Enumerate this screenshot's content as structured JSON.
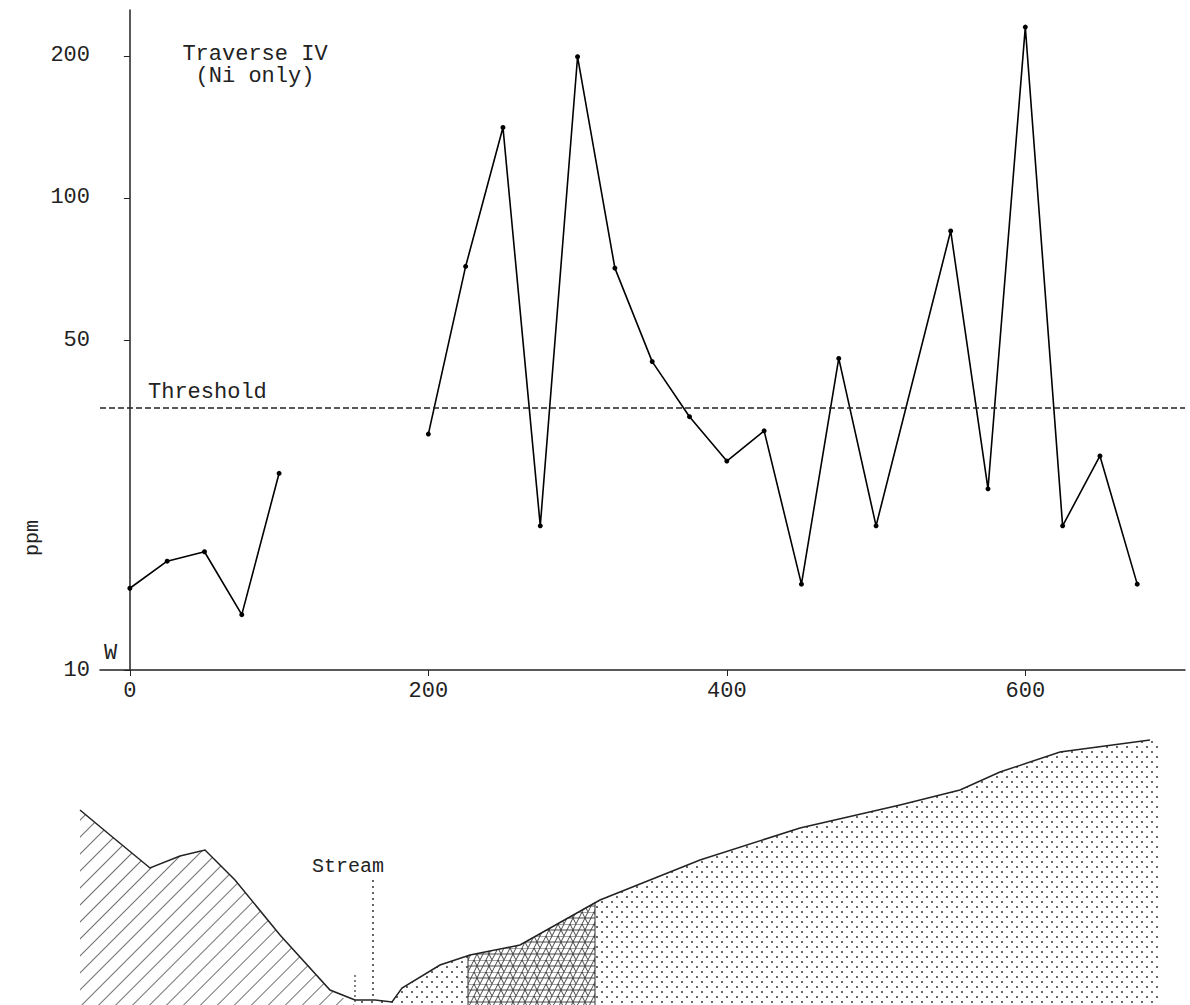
{
  "chart_data": {
    "type": "line",
    "title": "Traverse IV",
    "subtitle": "(Ni only)",
    "y_label": "ppm",
    "annotation": "W",
    "threshold": {
      "value": 36,
      "label": "Threshold",
      "line_style": "dashed"
    },
    "x": [
      0,
      25,
      50,
      75,
      100,
      150,
      200,
      225,
      250,
      275,
      300,
      325,
      350,
      375,
      400,
      425,
      450,
      475,
      500,
      550,
      575,
      600,
      625,
      650,
      675
    ],
    "series": [
      {
        "name": "Ni",
        "color": "#000000",
        "marker": "circle",
        "line_style": "solid",
        "values": [
          14.9,
          17.0,
          17.8,
          13.1,
          26.1,
          null,
          31.6,
          71.6,
          141,
          20.2,
          199,
          71,
          45,
          34.4,
          27.7,
          32.1,
          15.2,
          45.7,
          20.2,
          85.1,
          24.2,
          230,
          20.2,
          28.4,
          15.2
        ]
      }
    ],
    "xlim": [
      -20,
      707
    ],
    "xticks": [
      0,
      200,
      400,
      600
    ],
    "ylim": [
      10,
      250
    ],
    "yticks": [
      10,
      50,
      100,
      200
    ],
    "log": "y",
    "grid": false
  },
  "cross_section": {
    "label": "Stream"
  }
}
